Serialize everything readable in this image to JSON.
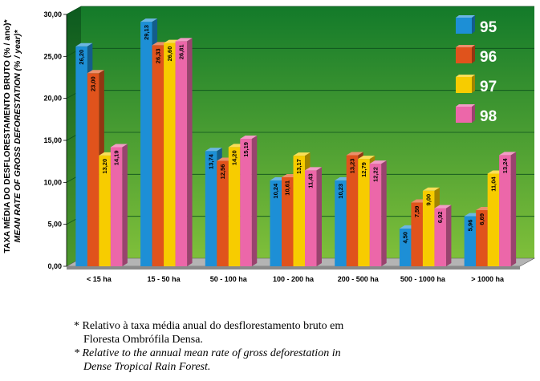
{
  "chart_data": {
    "type": "bar",
    "title": "",
    "ylabel": "TAXA MÉDIA DO DESFLORESTAMENTO BRUTO (% / ano)*",
    "ylabel_en": "MEAN RATE OF GROSS DEFORESTATION (% / year)*",
    "xlabel": "",
    "ylim": [
      0,
      30
    ],
    "yticks": [
      "0,00",
      "5,00",
      "10,00",
      "15,00",
      "20,00",
      "25,00",
      "30,00"
    ],
    "categories": [
      "< 15 ha",
      "15 - 50 ha",
      "50 - 100 ha",
      "100 - 200 ha",
      "200 - 500 ha",
      "500 - 1000 ha",
      "> 1000 ha"
    ],
    "series": [
      {
        "name": "95",
        "color": "#1d8fd6",
        "values": [
          26.2,
          29.13,
          13.74,
          10.24,
          10.23,
          4.5,
          5.96
        ],
        "labels": [
          "26,20",
          "29,13",
          "13,74",
          "10,24",
          "10,23",
          "4,50",
          "5,96"
        ]
      },
      {
        "name": "96",
        "color": "#e0531c",
        "values": [
          23.0,
          26.33,
          12.56,
          10.61,
          13.23,
          7.59,
          6.69
        ],
        "labels": [
          "23,00",
          "26,33",
          "12,56",
          "10,61",
          "13,23",
          "7,59",
          "6,69"
        ]
      },
      {
        "name": "97",
        "color": "#f7cc00",
        "values": [
          13.2,
          26.6,
          14.2,
          13.17,
          12.79,
          9.0,
          11.04
        ],
        "labels": [
          "13,20",
          "26,60",
          "14,20",
          "13,17",
          "12,79",
          "9,00",
          "11,04"
        ]
      },
      {
        "name": "98",
        "color": "#ec67a9",
        "values": [
          14.19,
          26.81,
          15.19,
          11.43,
          12.22,
          6.92,
          13.24
        ],
        "labels": [
          "14,19",
          "26,81",
          "15,19",
          "11,43",
          "12,22",
          "6,92",
          "13,24"
        ]
      }
    ],
    "legend_position": "top-right",
    "grid": true
  },
  "colors": {
    "background_top": "#137a2a",
    "background_bottom": "#7fbf3a",
    "grid": "#0c4f1c"
  },
  "notes": {
    "pt_line1": "* Relativo à taxa média anual do desflorestamento bruto em",
    "pt_line2": "Floresta Ombrófila Densa.",
    "en_line1": "* Relative to the annual mean rate of gross deforestation in",
    "en_line2": "Dense Tropical Rain Forest."
  }
}
